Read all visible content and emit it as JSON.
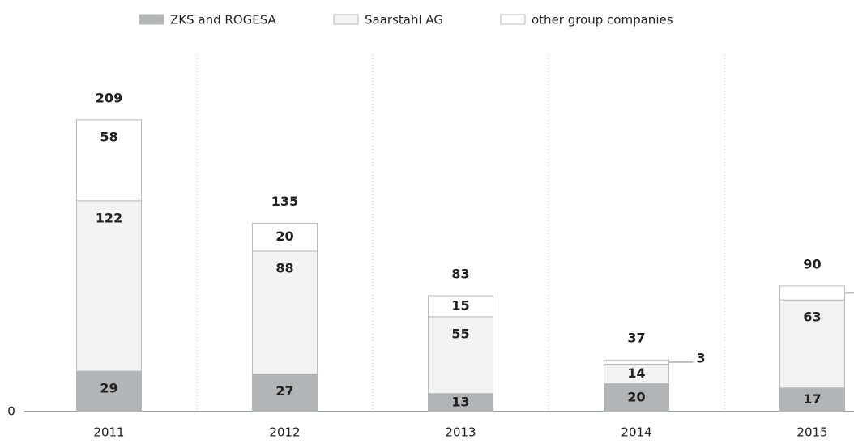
{
  "chart_data": {
    "type": "stacked_bar",
    "categories": [
      "2011",
      "2012",
      "2013",
      "2014",
      "2015"
    ],
    "series": [
      {
        "name": "ZKS and ROGESA",
        "color": "#b1b5b7",
        "values": [
          29,
          27,
          13,
          20,
          17
        ]
      },
      {
        "name": "Saarstahl AG",
        "color": "#f2f3f3",
        "values": [
          122,
          88,
          55,
          14,
          63
        ]
      },
      {
        "name": "other group companies",
        "color": "#ffffff",
        "values": [
          58,
          20,
          15,
          3,
          10
        ]
      }
    ],
    "totals": [
      209,
      135,
      83,
      37,
      90
    ],
    "ylim": [
      0,
      260
    ],
    "yticks": [
      0
    ],
    "legend": "top"
  }
}
